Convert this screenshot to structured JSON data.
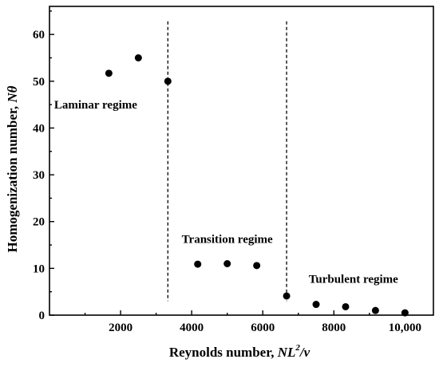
{
  "chart_data": {
    "type": "scatter",
    "title": "",
    "xlabel": {
      "prefix": "Reynolds number,  ",
      "symbol_base": "NL",
      "symbol_sup": "2",
      "symbol_tail": "/ν"
    },
    "ylabel": {
      "prefix": "Homogenization number,  ",
      "symbol": "Nθ"
    },
    "xlim": [
      0,
      10800
    ],
    "ylim": [
      0,
      66
    ],
    "x_ticks": [
      {
        "value": 2000,
        "label": "2000"
      },
      {
        "value": 4000,
        "label": "4000"
      },
      {
        "value": 6000,
        "label": "6000"
      },
      {
        "value": 8000,
        "label": "8000"
      },
      {
        "value": 10000,
        "label": "10,000"
      }
    ],
    "y_ticks": [
      {
        "value": 0,
        "label": "0"
      },
      {
        "value": 10,
        "label": "10"
      },
      {
        "value": 20,
        "label": "20"
      },
      {
        "value": 30,
        "label": "30"
      },
      {
        "value": 40,
        "label": "40"
      },
      {
        "value": 50,
        "label": "50"
      },
      {
        "value": 60,
        "label": "60"
      }
    ],
    "grid": false,
    "legend": "none",
    "points": [
      {
        "x": 1670,
        "y": 51.7
      },
      {
        "x": 2500,
        "y": 55.0
      },
      {
        "x": 3330,
        "y": 50.0
      },
      {
        "x": 4170,
        "y": 10.9
      },
      {
        "x": 5000,
        "y": 11.0
      },
      {
        "x": 5830,
        "y": 10.6
      },
      {
        "x": 6670,
        "y": 4.1
      },
      {
        "x": 7500,
        "y": 2.3
      },
      {
        "x": 8330,
        "y": 1.8
      },
      {
        "x": 9170,
        "y": 1.0
      },
      {
        "x": 10000,
        "y": 0.5
      }
    ],
    "regime_boundaries": [
      3330,
      6670
    ],
    "annotations": [
      {
        "text": "Laminar regime",
        "x": 1300,
        "y": 44.2
      },
      {
        "text": "Transition regime",
        "x": 5000,
        "y": 15.4
      },
      {
        "text": "Turbulent regime",
        "x": 8550,
        "y": 6.9
      }
    ],
    "marker_color": "#000000"
  }
}
